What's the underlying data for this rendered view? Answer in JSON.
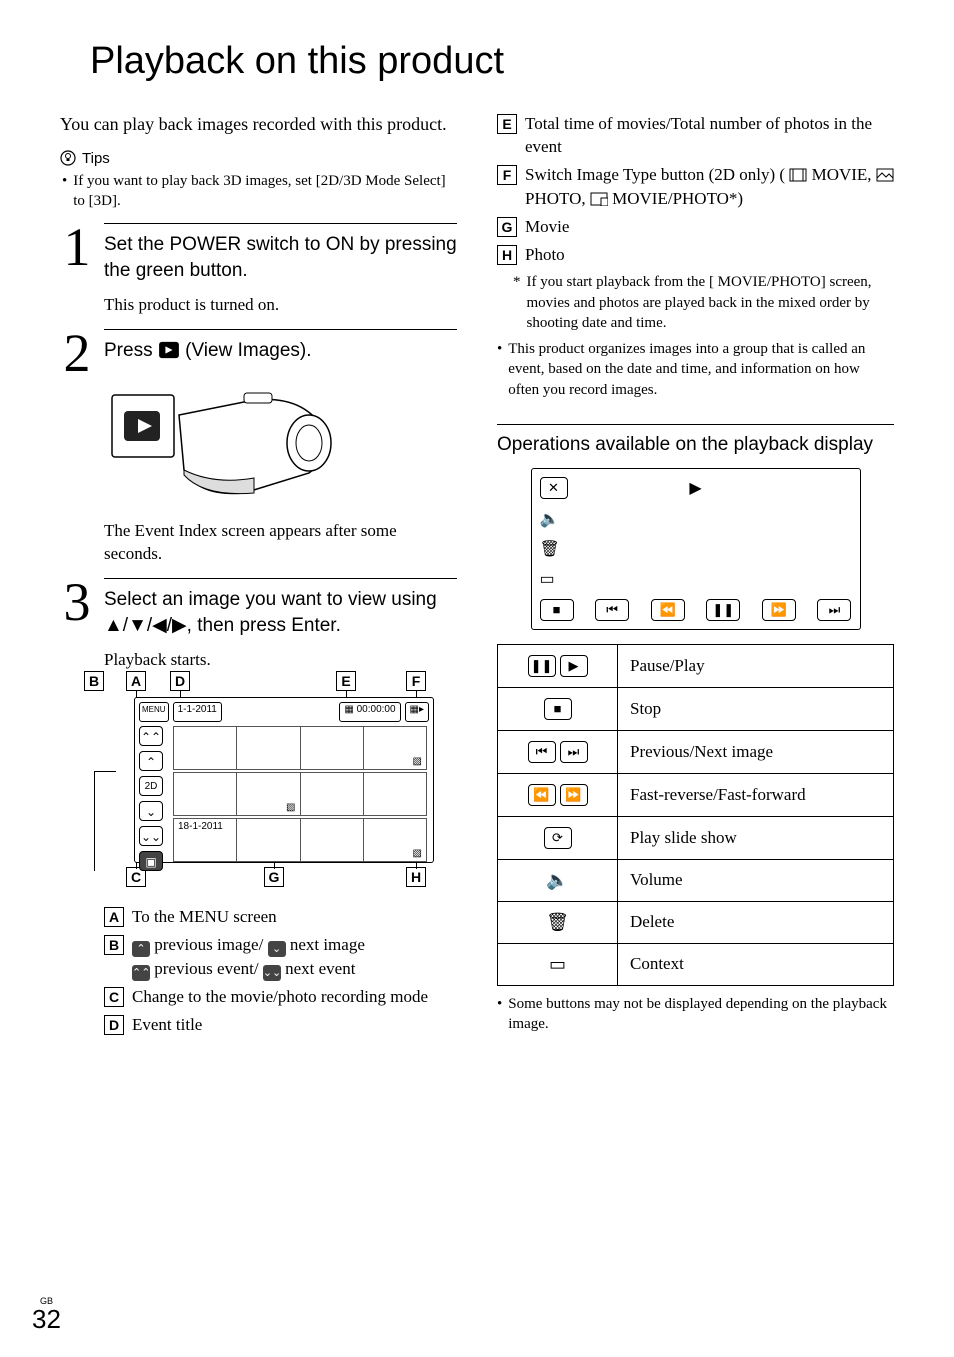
{
  "page": {
    "gb": "GB",
    "num": "32"
  },
  "title": "Playback on this product",
  "intro": "You can play back images recorded with this product.",
  "tips_label": "Tips",
  "tip1": "If you want to play back 3D images, set [2D/3D Mode Select] to [3D].",
  "step1": {
    "head": "Set the POWER switch to ON by pressing the green button.",
    "sub": "This product is turned on."
  },
  "step2": {
    "head_a": "Press ",
    "head_b": " (View Images).",
    "sub": "The Event Index screen appears after some seconds."
  },
  "step3": {
    "head": "Select an image you want to view using ▲/▼/◀/▶, then press Enter.",
    "sub": "Playback starts."
  },
  "event_index": {
    "menu": "MENU",
    "date1": "1-1-2011",
    "time": "▦ 00:00:00",
    "date2": "18-1-2011",
    "twod": "2D"
  },
  "legend_left": {
    "A": "To the MENU screen",
    "B_a": " previous image/ ",
    "B_b": " next image",
    "B_c": " previous event/ ",
    "B_d": " next event",
    "C": "Change to the movie/photo recording mode",
    "D": "Event title"
  },
  "legend_right": {
    "E": "Total time of movies/Total number of photos in the event",
    "F_a": "Switch Image Type button (2D only) ( ",
    "F_movie": "MOVIE, ",
    "F_photo": "PHOTO, ",
    "F_mp": "MOVIE/PHOTO*)",
    "G": "Movie",
    "H": "Photo"
  },
  "note_star": "If you start playback from the [      MOVIE/PHOTO] screen, movies and photos are played back in the mixed order by shooting date and time.",
  "note_star_pre": "*",
  "note_bullet": "This product organizes images into a group that is called an event, based on the date and time, and information on how often you record images.",
  "subheader": "Operations available on the playback display",
  "ops": [
    {
      "icons": [
        "❚❚",
        "▶"
      ],
      "label": "Pause/Play"
    },
    {
      "icons": [
        "■"
      ],
      "label": "Stop"
    },
    {
      "icons": [
        "⏮",
        "⏭"
      ],
      "label": "Previous/Next image"
    },
    {
      "icons": [
        "⏪",
        "⏩"
      ],
      "label": "Fast-reverse/Fast-forward"
    },
    {
      "icons": [
        "⟳"
      ],
      "label": "Play slide show"
    },
    {
      "icons": [
        "🔈"
      ],
      "label": "Volume",
      "plain": true
    },
    {
      "icons": [
        "🗑"
      ],
      "label": "Delete",
      "plain": true
    },
    {
      "icons": [
        "▭"
      ],
      "label": "Context",
      "plain": true
    }
  ],
  "footnote": "Some buttons may not be displayed depending on the playback image.",
  "pb": {
    "close": "✕",
    "play": "▶",
    "vol": "🔈",
    "trash": "🗑",
    "ctx": "▭",
    "stop": "■",
    "prev": "⏮",
    "rev": "⏪",
    "pause": "❚❚",
    "fwd": "⏩",
    "next": "⏭"
  }
}
